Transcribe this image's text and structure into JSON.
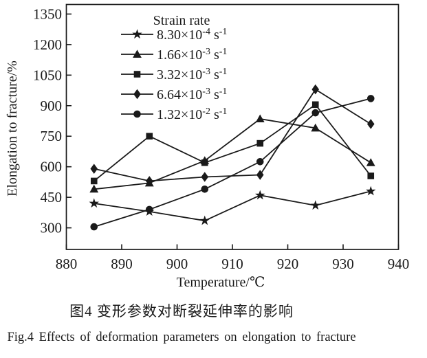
{
  "figure": {
    "caption_zh": "图4  变形参数对断裂延伸率的影响",
    "caption_en": "Fig.4  Effects of deformation parameters on elongation to fracture"
  },
  "chart_data": {
    "type": "line",
    "title": "",
    "xlabel": "Temperature/℃",
    "ylabel": "Elongation to fracture/%",
    "x": [
      885,
      895,
      905,
      915,
      925,
      935
    ],
    "xlim": [
      880,
      940
    ],
    "ylim": [
      194,
      1397
    ],
    "xticks": [
      880,
      890,
      900,
      910,
      920,
      930,
      940
    ],
    "yticks": [
      300,
      450,
      600,
      750,
      900,
      1050,
      1200,
      1350
    ],
    "grid": false,
    "legend_title": "Strain rate",
    "legend_position": "top-center-inside",
    "series": [
      {
        "marker": "star",
        "rate": {
          "base": "8.30×10",
          "exp": "-4",
          "unit": "s",
          "unit_exp": "-1"
        },
        "values": [
          420,
          380,
          335,
          460,
          410,
          480
        ]
      },
      {
        "marker": "triangle",
        "rate": {
          "base": "1.66×10",
          "exp": "-3",
          "unit": "s",
          "unit_exp": "-1"
        },
        "values": [
          490,
          520,
          630,
          835,
          790,
          620
        ]
      },
      {
        "marker": "square",
        "rate": {
          "base": "3.32×10",
          "exp": "-3",
          "unit": "s",
          "unit_exp": "-1"
        },
        "values": [
          530,
          750,
          620,
          715,
          905,
          555
        ]
      },
      {
        "marker": "diamond",
        "rate": {
          "base": "6.64×10",
          "exp": "-3",
          "unit": "s",
          "unit_exp": "-1"
        },
        "values": [
          590,
          530,
          550,
          560,
          980,
          810
        ]
      },
      {
        "marker": "circle",
        "rate": {
          "base": "1.32×10",
          "exp": "-2",
          "unit": "s",
          "unit_exp": "-1"
        },
        "values": [
          305,
          390,
          490,
          625,
          865,
          935
        ]
      }
    ],
    "colors": {
      "ink": "#1a1a1a",
      "background": "#ffffff"
    }
  }
}
